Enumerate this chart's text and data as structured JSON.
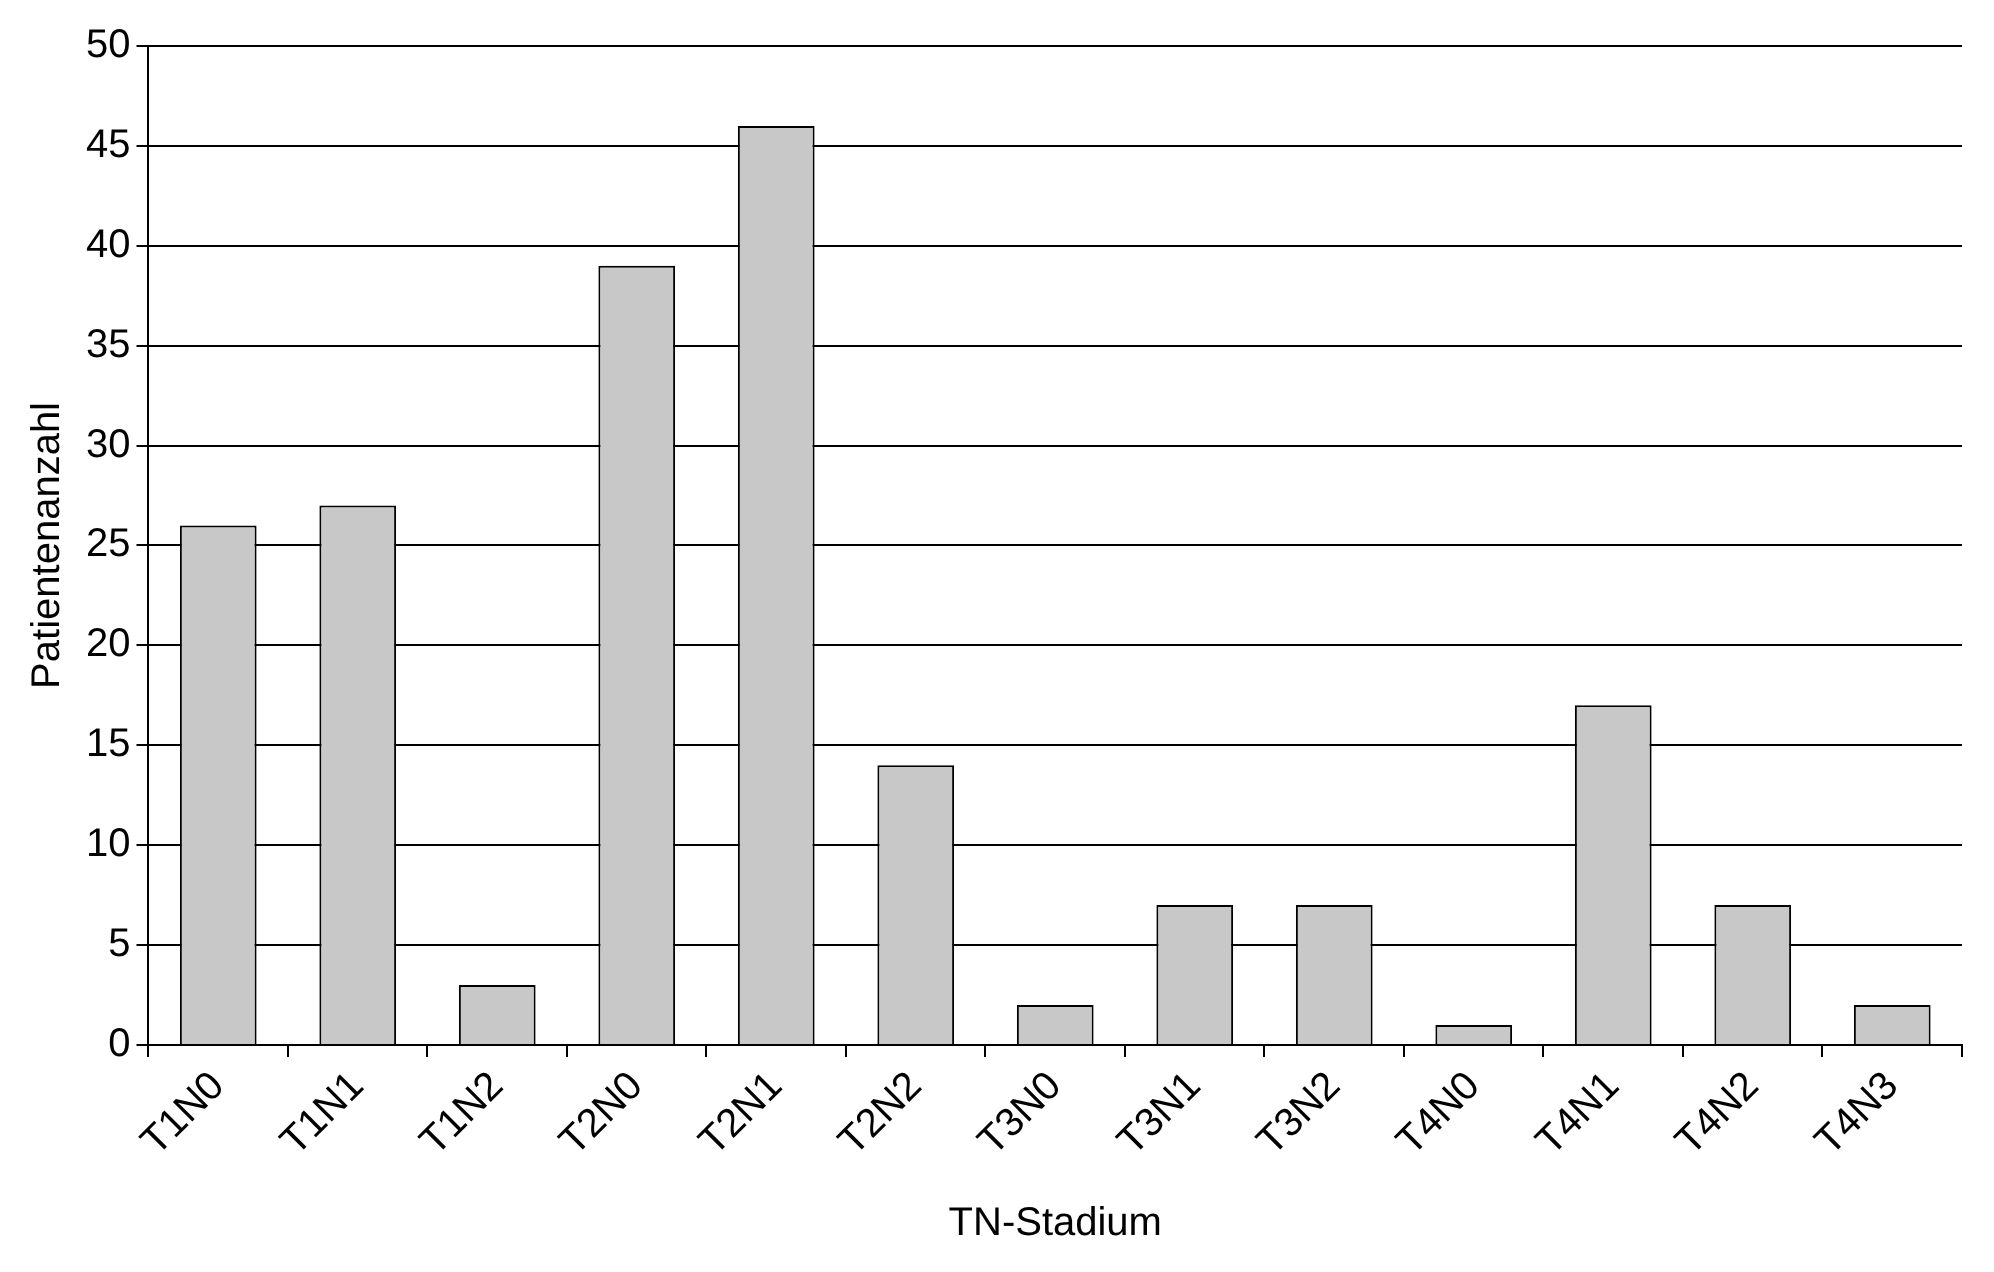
{
  "chart_data": {
    "type": "bar",
    "xlabel": "TN-Stadium",
    "ylabel": "Patientenanzahl",
    "categories": [
      "T1N0",
      "T1N1",
      "T1N2",
      "T2N0",
      "T2N1",
      "T2N2",
      "T3N0",
      "T3N1",
      "T3N2",
      "T4N0",
      "T4N1",
      "T4N2",
      "T4N3"
    ],
    "values": [
      26,
      27,
      3,
      39,
      46,
      14,
      2,
      7,
      7,
      1,
      17,
      7,
      2
    ],
    "color": "#c8c8c8",
    "ylim": [
      0,
      50
    ],
    "yticks": [
      0,
      5,
      10,
      15,
      20,
      25,
      30,
      35,
      40,
      45,
      50
    ],
    "grid": "y",
    "legend": false
  }
}
